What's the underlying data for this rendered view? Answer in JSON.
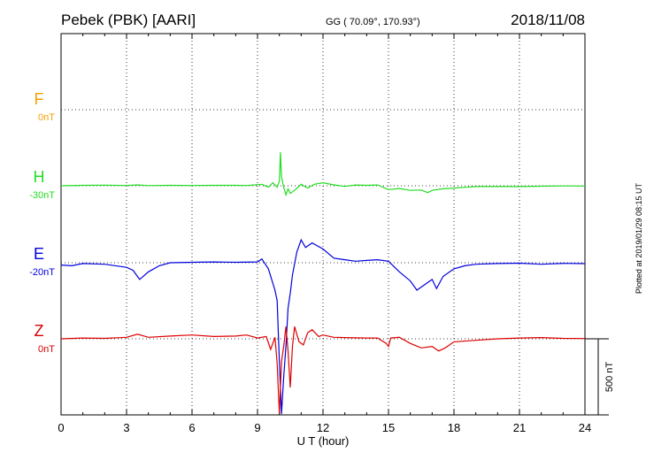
{
  "header": {
    "station": "Pebek (PBK)  [AARI]",
    "coords": "GG ( 70.09°, 170.93°)",
    "date": "2018/11/08"
  },
  "side_note": "Plotted at 2019/01/29 08:15 UT",
  "colors": {
    "F": "#f5a000",
    "H": "#22dd22",
    "E": "#0000dd",
    "Z": "#dd0000",
    "grid": "#000000"
  },
  "chart_data": {
    "type": "line",
    "xlabel": "U T (hour)",
    "xlim": [
      0,
      24
    ],
    "xticks": [
      "0",
      "3",
      "6",
      "9",
      "12",
      "15",
      "18",
      "21",
      "24"
    ],
    "scale_bar_label": "500 nT",
    "grid": true,
    "series": [
      {
        "name": "F",
        "offset_label": "0nT",
        "x": [],
        "y": []
      },
      {
        "name": "H",
        "offset_label": "-30nT",
        "x": [
          0,
          1,
          2,
          3,
          3.5,
          4,
          5,
          6,
          7,
          8,
          8.5,
          9.2,
          9.5,
          9.7,
          9.9,
          10.0,
          10.05,
          10.1,
          10.2,
          10.3,
          10.4,
          10.5,
          10.7,
          11.0,
          11.3,
          11.6,
          12,
          12.5,
          13,
          13.5,
          14,
          14.5,
          15,
          15.5,
          16,
          16.5,
          16.8,
          17,
          17.5,
          18,
          18.5,
          19,
          20,
          21,
          22,
          23,
          24
        ],
        "y": [
          0,
          3,
          4,
          2,
          6,
          1,
          3,
          2,
          3,
          3,
          2,
          10,
          -10,
          20,
          -10,
          30,
          220,
          60,
          -10,
          -60,
          -20,
          -50,
          -30,
          10,
          -15,
          10,
          20,
          6,
          -4,
          5,
          3,
          5,
          -25,
          -18,
          -30,
          -28,
          -45,
          -30,
          -20,
          -15,
          -10,
          -5,
          -5,
          -5,
          -3,
          -1,
          -2
        ]
      },
      {
        "name": "E",
        "offset_label": "-20nT",
        "x": [
          0,
          0.5,
          1,
          2,
          3,
          3.3,
          3.6,
          4,
          4.5,
          5,
          6,
          7,
          8,
          9,
          9.2,
          9.5,
          9.8,
          9.9,
          10.0,
          10.1,
          10.2,
          10.3,
          10.4,
          10.5,
          10.6,
          10.8,
          11,
          11.2,
          11.5,
          12,
          12.5,
          13,
          13.5,
          14,
          14.5,
          15,
          15.5,
          16,
          16.3,
          16.6,
          17,
          17.2,
          17.5,
          18,
          18.5,
          19,
          20,
          21,
          22,
          23,
          24
        ],
        "y": [
          -15,
          -20,
          -5,
          -10,
          -30,
          -50,
          -110,
          -60,
          -20,
          0,
          3,
          5,
          3,
          5,
          25,
          -40,
          -180,
          -250,
          -650,
          -1000,
          -750,
          -550,
          -300,
          -200,
          -80,
          70,
          150,
          100,
          130,
          90,
          30,
          20,
          10,
          15,
          20,
          10,
          -60,
          -120,
          -180,
          -150,
          -110,
          -170,
          -90,
          -40,
          -20,
          -10,
          -5,
          -3,
          -10,
          -4,
          -6
        ]
      },
      {
        "name": "Z",
        "offset_label": "0nT",
        "x": [
          0,
          1,
          2,
          3,
          3.5,
          4,
          5,
          6,
          7,
          8,
          8.5,
          9,
          9.4,
          9.6,
          9.8,
          9.9,
          10.0,
          10.05,
          10.1,
          10.2,
          10.3,
          10.4,
          10.5,
          10.6,
          10.7,
          10.9,
          11.1,
          11.3,
          11.5,
          11.8,
          12,
          12.5,
          13,
          14,
          14.5,
          14.9,
          15.0,
          15.1,
          15.5,
          16,
          16.5,
          17,
          17.3,
          17.6,
          18,
          19,
          20,
          21,
          22,
          23,
          24
        ],
        "y": [
          0,
          5,
          3,
          10,
          30,
          10,
          18,
          25,
          15,
          18,
          25,
          5,
          15,
          -70,
          10,
          -160,
          -1000,
          -320,
          -150,
          -50,
          80,
          -80,
          -320,
          -50,
          80,
          -20,
          -40,
          40,
          60,
          15,
          25,
          10,
          8,
          5,
          5,
          -30,
          -50,
          5,
          10,
          -30,
          -60,
          -50,
          -80,
          -60,
          -20,
          -10,
          0,
          5,
          8,
          3,
          2
        ]
      }
    ]
  }
}
